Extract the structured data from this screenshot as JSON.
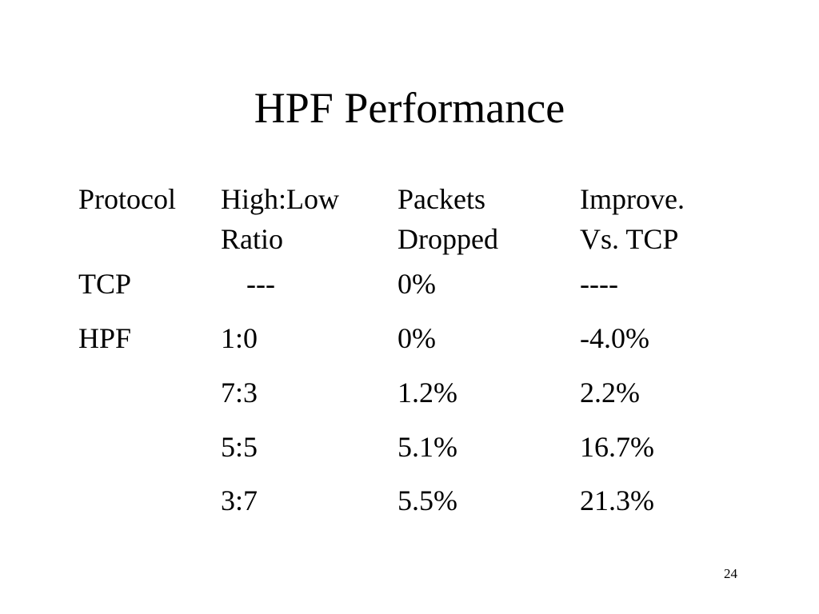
{
  "slide": {
    "title": "HPF Performance",
    "page_number": "24"
  },
  "table": {
    "headers": [
      [
        "Protocol",
        ""
      ],
      [
        "High:Low",
        "Ratio"
      ],
      [
        "Packets",
        "Dropped"
      ],
      [
        "Improve.",
        "Vs. TCP"
      ]
    ],
    "rows": [
      [
        "TCP",
        "---",
        "0%",
        "----"
      ],
      [
        "HPF",
        "1:0",
        "0%",
        "-4.0%"
      ],
      [
        "",
        "7:3",
        "1.2%",
        "2.2%"
      ],
      [
        "",
        "5:5",
        "5.1%",
        "16.7%"
      ],
      [
        "",
        "3:7",
        "5.5%",
        "21.3%"
      ]
    ]
  }
}
